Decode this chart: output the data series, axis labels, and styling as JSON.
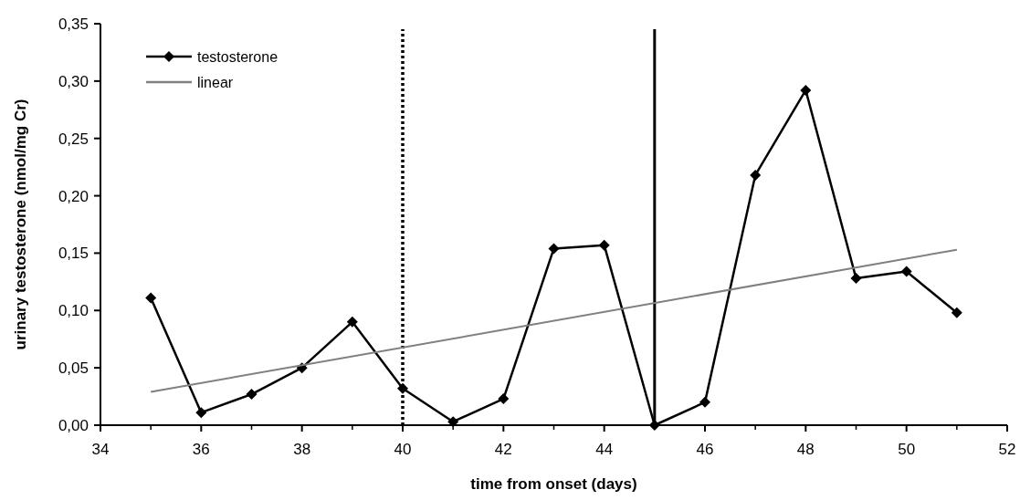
{
  "chart_data": {
    "type": "line",
    "xlabel": "time from onset (days)",
    "ylabel": "urinary testosterone (nmol/mg Cr)",
    "xlim": [
      34,
      52
    ],
    "xticks": [
      34,
      36,
      38,
      40,
      42,
      44,
      46,
      48,
      50,
      52
    ],
    "ylim": [
      0,
      0.35
    ],
    "yticks": [
      {
        "value": 0,
        "label": "0,00"
      },
      {
        "value": 0.05,
        "label": "0,05"
      },
      {
        "value": 0.1,
        "label": "0,10"
      },
      {
        "value": 0.15,
        "label": "0,15"
      },
      {
        "value": 0.2,
        "label": "0,20"
      },
      {
        "value": 0.25,
        "label": "0,25"
      },
      {
        "value": 0.3,
        "label": "0,30"
      },
      {
        "value": 0.35,
        "label": "0,35"
      }
    ],
    "grid": false,
    "legend": "top left",
    "series": [
      {
        "name": "testosterone",
        "color": "#000000",
        "marker": "diamond",
        "x": [
          35,
          36,
          37,
          38,
          39,
          40,
          41,
          42,
          43,
          44,
          45,
          46,
          47,
          48,
          49,
          50,
          51
        ],
        "values": [
          0.111,
          0.011,
          0.027,
          0.05,
          0.09,
          0.032,
          0.003,
          0.023,
          0.154,
          0.157,
          0.0,
          0.02,
          0.218,
          0.292,
          0.128,
          0.134,
          0.098
        ]
      },
      {
        "name": "linear",
        "color": "#808080",
        "marker": "none",
        "x": [
          35,
          51
        ],
        "values": [
          0.029,
          0.153
        ]
      }
    ],
    "ref_lines": [
      {
        "axis": "x",
        "value": 40,
        "color": "#000000",
        "line_style": "dotted"
      },
      {
        "axis": "x",
        "value": 45,
        "color": "#000000",
        "line_style": "solid"
      }
    ]
  }
}
